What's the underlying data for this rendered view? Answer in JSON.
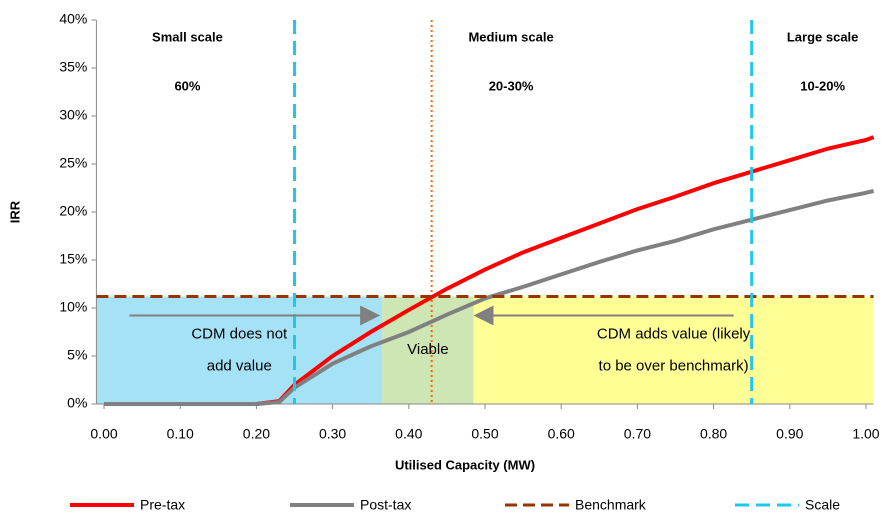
{
  "chart_data": {
    "type": "line",
    "x_label": "Utilised Capacity (MW)",
    "y_label": "IRR",
    "xlim": [
      -0.01,
      1.01
    ],
    "ylim": [
      0,
      40
    ],
    "xticks": [
      {
        "value": 0,
        "label": "0.00"
      },
      {
        "value": 0.1,
        "label": "0.10"
      },
      {
        "value": 0.2,
        "label": "0.20"
      },
      {
        "value": 0.3,
        "label": "0.30"
      },
      {
        "value": 0.4,
        "label": "0.40"
      },
      {
        "value": 0.5,
        "label": "0.50"
      },
      {
        "value": 0.6,
        "label": "0.60"
      },
      {
        "value": 0.7,
        "label": "0.70"
      },
      {
        "value": 0.8,
        "label": "0.80"
      },
      {
        "value": 0.9,
        "label": "0.90"
      },
      {
        "value": 1,
        "label": "1.00"
      }
    ],
    "yticks": [
      {
        "value": 0,
        "label": "0%"
      },
      {
        "value": 5,
        "label": "5%"
      },
      {
        "value": 10,
        "label": "10%"
      },
      {
        "value": 15,
        "label": "15%"
      },
      {
        "value": 20,
        "label": "20%"
      },
      {
        "value": 25,
        "label": "25%"
      },
      {
        "value": 30,
        "label": "30%"
      },
      {
        "value": 35,
        "label": "35%"
      },
      {
        "value": 40,
        "label": "40%"
      }
    ],
    "x": [
      0,
      0.05,
      0.1,
      0.15,
      0.2,
      0.23,
      0.25,
      0.3,
      0.35,
      0.4,
      0.45,
      0.5,
      0.55,
      0.6,
      0.65,
      0.7,
      0.75,
      0.8,
      0.85,
      0.9,
      0.95,
      1.0,
      1.01
    ],
    "series": [
      {
        "name": "Pre-tax",
        "color": "#ff0000",
        "values": [
          0,
          0,
          0,
          0,
          0,
          0.3,
          2,
          5,
          7.5,
          9.8,
          12,
          14,
          15.8,
          17.3,
          18.8,
          20.3,
          21.6,
          23,
          24.2,
          25.4,
          26.6,
          27.5,
          27.8
        ]
      },
      {
        "name": "Post-tax",
        "color": "#808080",
        "values": [
          0,
          0,
          0,
          0,
          0,
          0.2,
          1.7,
          4.2,
          6,
          7.5,
          9.3,
          11,
          12.2,
          13.5,
          14.8,
          16,
          17,
          18.2,
          19.2,
          20.2,
          21.2,
          22,
          22.2
        ]
      }
    ],
    "benchmark": {
      "name": "Benchmark",
      "color": "#993300",
      "value": 11.2
    },
    "scale": {
      "name": "Scale",
      "color": "#1fc7ee",
      "x": [
        0.25,
        0.85
      ]
    },
    "threshold_x": 0.43,
    "threshold_color": "#ff6600",
    "regions": [
      {
        "label": [
          "CDM does not",
          "add value"
        ],
        "x": [
          -0.01,
          0.365
        ],
        "color": "#a6e2f6"
      },
      {
        "label": [
          "Viable"
        ],
        "x": [
          0.365,
          0.485
        ],
        "color": "#cde6b4"
      },
      {
        "label": [
          "CDM adds value (likely",
          "to be over benchmark)"
        ],
        "x": [
          0.485,
          1.01
        ],
        "color": "#ffff96"
      }
    ],
    "scale_zones": [
      {
        "name": "Small scale",
        "share": "60%"
      },
      {
        "name": "Medium scale",
        "share": "20-30%"
      },
      {
        "name": "Large scale",
        "share": "10-20%"
      }
    ]
  }
}
